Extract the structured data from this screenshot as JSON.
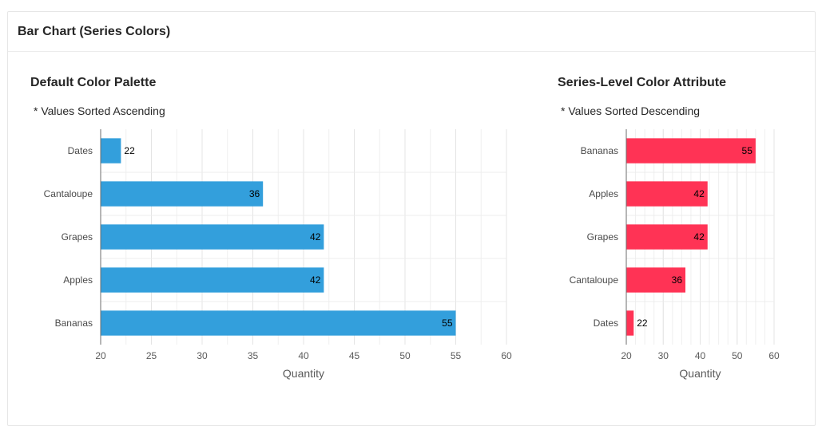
{
  "card": {
    "title": "Bar Chart (Series Colors)"
  },
  "chart_data": [
    {
      "type": "bar",
      "orientation": "horizontal",
      "title": "Default Color Palette",
      "subtitle": "* Values Sorted Ascending",
      "categories": [
        "Dates",
        "Cantaloupe",
        "Grapes",
        "Apples",
        "Bananas"
      ],
      "values": [
        22,
        36,
        42,
        42,
        55
      ],
      "xlabel": "Quantity",
      "xlim": [
        20,
        60
      ],
      "ticks": [
        20,
        25,
        30,
        35,
        40,
        45,
        50,
        55,
        60
      ],
      "color": "#339fdc",
      "grid": true
    },
    {
      "type": "bar",
      "orientation": "horizontal",
      "title": "Series-Level Color Attribute",
      "subtitle": "* Values Sorted Descending",
      "categories": [
        "Bananas",
        "Apples",
        "Grapes",
        "Cantaloupe",
        "Dates"
      ],
      "values": [
        55,
        42,
        42,
        36,
        22
      ],
      "xlabel": "Quantity",
      "xlim": [
        20,
        60
      ],
      "ticks": [
        20,
        30,
        40,
        50,
        60
      ],
      "color": "#ff3355",
      "grid": true
    }
  ]
}
